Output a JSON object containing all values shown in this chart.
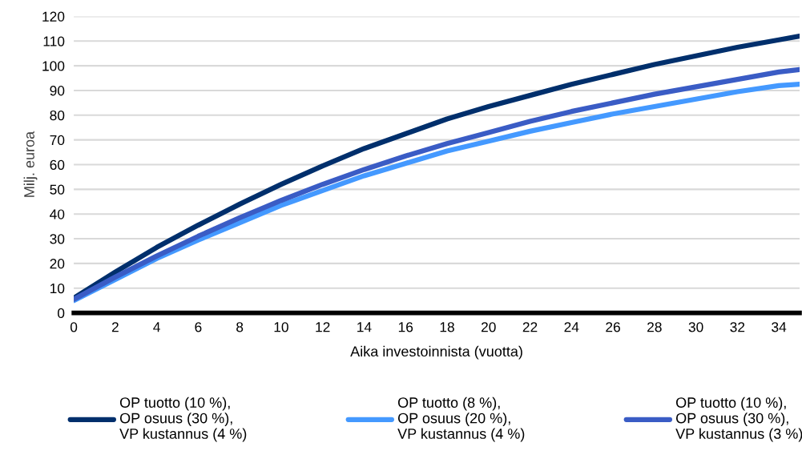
{
  "chart_data": {
    "type": "line",
    "xlabel": "Aika investoinnista (vuotta)",
    "ylabel": "Milj. euroa",
    "x": [
      0,
      2,
      4,
      6,
      8,
      10,
      12,
      14,
      16,
      18,
      20,
      22,
      24,
      26,
      28,
      30,
      32,
      34,
      35
    ],
    "series": [
      {
        "name": "OP tuotto (10 %),\nOP osuus (30 %),\nVP kustannus (4 %)",
        "color": "#002f6c",
        "values": [
          6,
          16.5,
          26.5,
          35.5,
          44,
          52,
          59.5,
          66.5,
          72.5,
          78.5,
          83.5,
          88,
          92.5,
          96.5,
          100.5,
          104,
          107.5,
          110.5,
          112
        ]
      },
      {
        "name": "OP tuotto (8 %),\nOP osuus (20 %),\nVP kustannus (4 %)",
        "color": "#4499ff",
        "values": [
          5,
          13.5,
          22,
          29.5,
          36.5,
          43.5,
          49.5,
          55.5,
          60.5,
          65.5,
          69.5,
          73.5,
          77,
          80.5,
          83.5,
          86.5,
          89.5,
          92,
          92.5
        ]
      },
      {
        "name": "OP tuotto (10 %),\nOP osuus (30 %),\nVP kustannus (3 %)",
        "color": "#3a5cc5",
        "values": [
          5.5,
          14.5,
          23,
          31,
          38.5,
          45.5,
          52,
          58,
          63.5,
          68.5,
          73,
          77.5,
          81.5,
          85,
          88.5,
          91.5,
          94.5,
          97.5,
          98.5
        ]
      }
    ],
    "xlim": [
      0,
      35
    ],
    "xticks": [
      0,
      2,
      4,
      6,
      8,
      10,
      12,
      14,
      16,
      18,
      20,
      22,
      24,
      26,
      28,
      30,
      32,
      34
    ],
    "ylim": [
      0,
      120
    ],
    "yticks": [
      0,
      10,
      20,
      30,
      40,
      50,
      60,
      70,
      80,
      90,
      100,
      110,
      120
    ],
    "grid": "y",
    "legend": "bottom",
    "marker": "none",
    "line_style": "solid"
  }
}
